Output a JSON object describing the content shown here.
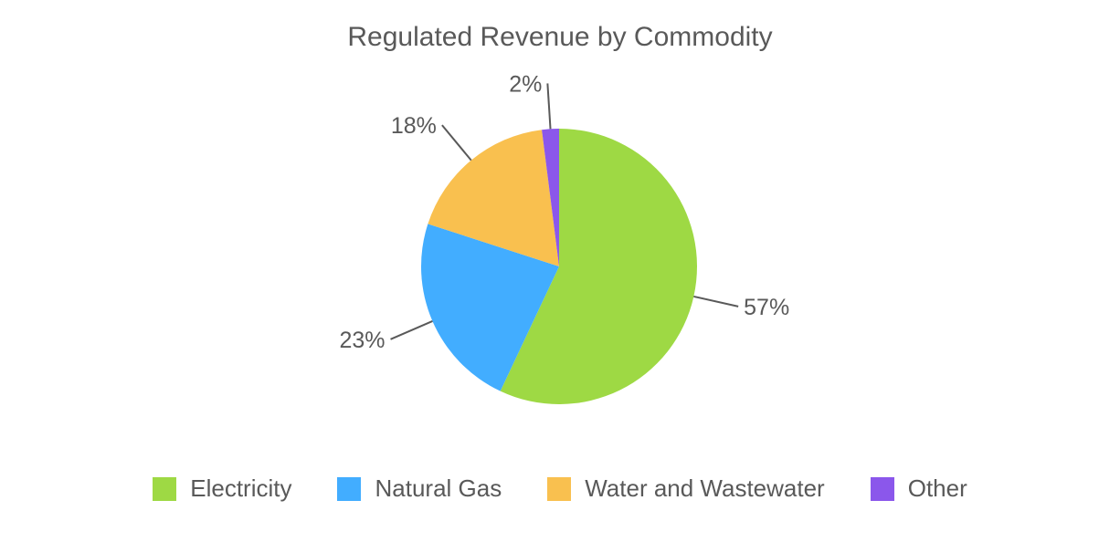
{
  "title": "Regulated Revenue by Commodity",
  "chart_data": {
    "type": "pie",
    "title": "Regulated Revenue by Commodity",
    "categories": [
      "Electricity",
      "Natural Gas",
      "Water and Wastewater",
      "Other"
    ],
    "values": [
      57,
      23,
      18,
      2
    ],
    "labels": [
      "57%",
      "23%",
      "18%",
      "2%"
    ],
    "colors": [
      "#9ED944",
      "#42ADFF",
      "#F9C04F",
      "#8B57EB"
    ],
    "legend_position": "bottom",
    "start_angle": "12 o'clock",
    "direction": "clockwise"
  },
  "legend": [
    {
      "label": "Electricity",
      "color": "#9ED944"
    },
    {
      "label": "Natural Gas",
      "color": "#42ADFF"
    },
    {
      "label": "Water and Wastewater",
      "color": "#F9C04F"
    },
    {
      "label": "Other",
      "color": "#8B57EB"
    }
  ]
}
